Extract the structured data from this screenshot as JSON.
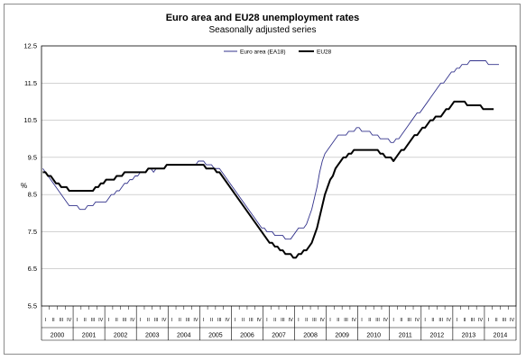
{
  "chart_data": {
    "type": "line",
    "title": "Euro area and EU28 unemployment rates",
    "subtitle": "Seasonally adjusted series",
    "ylabel": "%",
    "xlabel": "",
    "ylim": [
      5.5,
      12.5
    ],
    "yticks": [
      "12.5",
      "11.5",
      "10.5",
      "9.5",
      "8.5",
      "7.5",
      "6.5",
      "5.5"
    ],
    "years": [
      "2000",
      "2001",
      "2002",
      "2003",
      "2004",
      "2005",
      "2006",
      "2007",
      "2008",
      "2009",
      "2010",
      "2011",
      "2012",
      "2013",
      "2014"
    ],
    "quarters_label": [
      "I",
      "II",
      "III",
      "IV"
    ],
    "grid": true,
    "legend_position": "top-center",
    "start_month": "2000-01",
    "series": [
      {
        "name": "Euro area (EA18)",
        "color": "#33338c",
        "monthly_values": [
          9.2,
          9.1,
          9.0,
          8.9,
          8.8,
          8.7,
          8.6,
          8.5,
          8.4,
          8.3,
          8.2,
          8.2,
          8.2,
          8.2,
          8.1,
          8.1,
          8.1,
          8.2,
          8.2,
          8.2,
          8.3,
          8.3,
          8.3,
          8.3,
          8.3,
          8.4,
          8.5,
          8.5,
          8.6,
          8.6,
          8.7,
          8.8,
          8.8,
          8.9,
          8.9,
          9.0,
          9.0,
          9.1,
          9.1,
          9.1,
          9.2,
          9.2,
          9.1,
          9.2,
          9.2,
          9.2,
          9.2,
          9.3,
          9.3,
          9.3,
          9.3,
          9.3,
          9.3,
          9.3,
          9.3,
          9.3,
          9.3,
          9.3,
          9.3,
          9.4,
          9.4,
          9.4,
          9.3,
          9.3,
          9.3,
          9.2,
          9.2,
          9.2,
          9.1,
          9.0,
          8.9,
          8.8,
          8.7,
          8.6,
          8.5,
          8.4,
          8.3,
          8.2,
          8.1,
          8.0,
          7.9,
          7.8,
          7.7,
          7.6,
          7.6,
          7.5,
          7.5,
          7.5,
          7.4,
          7.4,
          7.4,
          7.4,
          7.3,
          7.3,
          7.3,
          7.4,
          7.5,
          7.6,
          7.6,
          7.6,
          7.7,
          7.9,
          8.1,
          8.4,
          8.7,
          9.1,
          9.4,
          9.6,
          9.7,
          9.8,
          9.9,
          10.0,
          10.1,
          10.1,
          10.1,
          10.1,
          10.2,
          10.2,
          10.2,
          10.3,
          10.3,
          10.2,
          10.2,
          10.2,
          10.2,
          10.1,
          10.1,
          10.1,
          10.0,
          10.0,
          10.0,
          10.0,
          9.9,
          9.9,
          10.0,
          10.0,
          10.1,
          10.2,
          10.3,
          10.4,
          10.5,
          10.6,
          10.7,
          10.7,
          10.8,
          10.9,
          11.0,
          11.1,
          11.2,
          11.3,
          11.4,
          11.5,
          11.5,
          11.6,
          11.7,
          11.8,
          11.8,
          11.9,
          11.9,
          12.0,
          12.0,
          12.0,
          12.1,
          12.1,
          12.1,
          12.1,
          12.1,
          12.1,
          12.1,
          12.0,
          12.0,
          12.0,
          12.0,
          12.0
        ]
      },
      {
        "name": "EU28",
        "color": "#000000",
        "monthly_values": [
          9.1,
          9.1,
          9.0,
          9.0,
          8.9,
          8.8,
          8.8,
          8.7,
          8.7,
          8.7,
          8.6,
          8.6,
          8.6,
          8.6,
          8.6,
          8.6,
          8.6,
          8.6,
          8.6,
          8.6,
          8.7,
          8.7,
          8.8,
          8.8,
          8.9,
          8.9,
          8.9,
          8.9,
          9.0,
          9.0,
          9.0,
          9.1,
          9.1,
          9.1,
          9.1,
          9.1,
          9.1,
          9.1,
          9.1,
          9.1,
          9.2,
          9.2,
          9.2,
          9.2,
          9.2,
          9.2,
          9.2,
          9.3,
          9.3,
          9.3,
          9.3,
          9.3,
          9.3,
          9.3,
          9.3,
          9.3,
          9.3,
          9.3,
          9.3,
          9.3,
          9.3,
          9.3,
          9.2,
          9.2,
          9.2,
          9.2,
          9.1,
          9.1,
          9.0,
          8.9,
          8.8,
          8.7,
          8.6,
          8.5,
          8.4,
          8.3,
          8.2,
          8.1,
          8.0,
          7.9,
          7.8,
          7.7,
          7.6,
          7.5,
          7.4,
          7.3,
          7.2,
          7.2,
          7.1,
          7.1,
          7.0,
          7.0,
          6.9,
          6.9,
          6.9,
          6.8,
          6.8,
          6.9,
          6.9,
          7.0,
          7.0,
          7.1,
          7.2,
          7.4,
          7.6,
          7.9,
          8.2,
          8.5,
          8.7,
          8.9,
          9.0,
          9.2,
          9.3,
          9.4,
          9.5,
          9.5,
          9.6,
          9.6,
          9.7,
          9.7,
          9.7,
          9.7,
          9.7,
          9.7,
          9.7,
          9.7,
          9.7,
          9.7,
          9.6,
          9.6,
          9.5,
          9.5,
          9.5,
          9.4,
          9.5,
          9.6,
          9.7,
          9.7,
          9.8,
          9.9,
          10.0,
          10.1,
          10.1,
          10.2,
          10.3,
          10.3,
          10.4,
          10.5,
          10.5,
          10.6,
          10.6,
          10.6,
          10.7,
          10.8,
          10.8,
          10.9,
          11.0,
          11.0,
          11.0,
          11.0,
          11.0,
          10.9,
          10.9,
          10.9,
          10.9,
          10.9,
          10.9,
          10.8,
          10.8,
          10.8,
          10.8,
          10.8
        ]
      }
    ]
  }
}
